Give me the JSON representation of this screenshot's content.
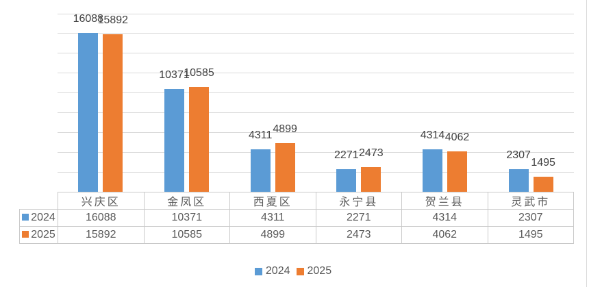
{
  "chart_data": {
    "type": "bar",
    "title": "",
    "xlabel": "",
    "ylabel": "",
    "categories": [
      "兴庆区",
      "金凤区",
      "西夏区",
      "永宁县",
      "贺兰县",
      "灵武市"
    ],
    "series": [
      {
        "name": "2024",
        "color": "#5B9BD5",
        "values": [
          16088,
          10371,
          4311,
          2271,
          4314,
          2307
        ]
      },
      {
        "name": "2025",
        "color": "#ED7D31",
        "values": [
          15892,
          10585,
          4899,
          2473,
          4062,
          1495
        ]
      }
    ],
    "ylim": [
      0,
      18000
    ],
    "y_major_unit": 2000,
    "grid": true,
    "data_labels_shown": true,
    "data_table_shown": true,
    "legend_position": "bottom"
  },
  "legend": {
    "items": [
      {
        "label": "2024",
        "color": "#5B9BD5"
      },
      {
        "label": "2025",
        "color": "#ED7D31"
      }
    ]
  },
  "colors": {
    "series_2024": "#5B9BD5",
    "series_2025": "#ED7D31",
    "gridline": "#D9D9D9",
    "table_border": "#C9C9C9",
    "data_label_text": "#404040",
    "table_text": "#595959",
    "legend_text": "#595959",
    "background": "#FFFFFF",
    "right_edge_line": "#D9D9D9"
  }
}
